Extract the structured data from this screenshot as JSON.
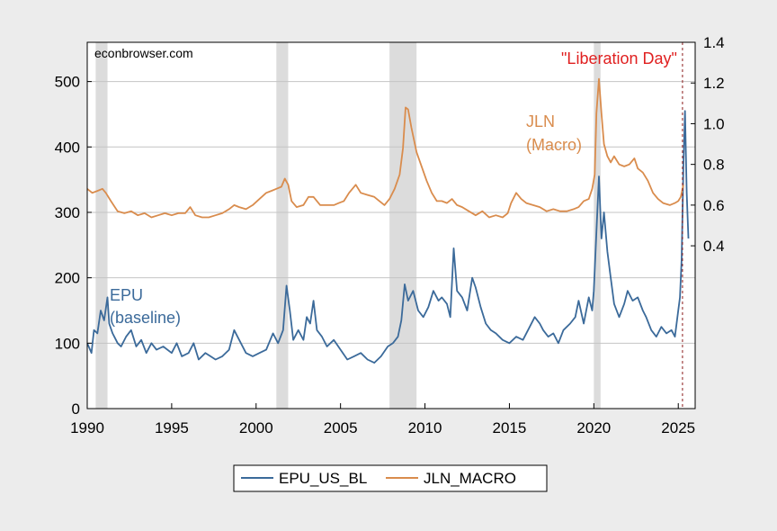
{
  "chart_data": {
    "type": "line",
    "source_label": "econbrowser.com",
    "x_ticks": [
      "1990",
      "1995",
      "2000",
      "2005",
      "2010",
      "2015",
      "2020",
      "2025"
    ],
    "y_left_ticks": [
      "0",
      "100",
      "200",
      "300",
      "400",
      "500"
    ],
    "y_right_ticks": [
      "0.4",
      "0.6",
      "0.8",
      "1.0",
      "1.2",
      "1.4"
    ],
    "xlim": [
      1990,
      2026.0
    ],
    "ylim_left": [
      0,
      560
    ],
    "ylim_right": [
      -0.4,
      1.4
    ],
    "grid": true,
    "recessions": [
      [
        1990.5,
        1991.2
      ],
      [
        2001.2,
        2001.9
      ],
      [
        2007.9,
        2009.5
      ],
      [
        2020.0,
        2020.4
      ]
    ],
    "event_line": {
      "x": 2025.25,
      "label": "\"Liberation Day\"",
      "color": "#e02020"
    },
    "series": [
      {
        "name": "EPU_US_BL",
        "axis": "left",
        "color": "#3b6a9a",
        "annotation": [
          "EPU",
          "(baseline)"
        ],
        "points": [
          [
            1990.0,
            100
          ],
          [
            1990.25,
            85
          ],
          [
            1990.4,
            120
          ],
          [
            1990.6,
            115
          ],
          [
            1990.8,
            150
          ],
          [
            1991.0,
            135
          ],
          [
            1991.2,
            170
          ],
          [
            1991.3,
            130
          ],
          [
            1991.5,
            115
          ],
          [
            1991.8,
            100
          ],
          [
            1992.0,
            95
          ],
          [
            1992.3,
            110
          ],
          [
            1992.6,
            120
          ],
          [
            1992.9,
            95
          ],
          [
            1993.2,
            105
          ],
          [
            1993.5,
            85
          ],
          [
            1993.8,
            100
          ],
          [
            1994.1,
            90
          ],
          [
            1994.5,
            95
          ],
          [
            1995.0,
            85
          ],
          [
            1995.3,
            100
          ],
          [
            1995.6,
            80
          ],
          [
            1996.0,
            85
          ],
          [
            1996.3,
            100
          ],
          [
            1996.6,
            75
          ],
          [
            1997.0,
            85
          ],
          [
            1997.3,
            80
          ],
          [
            1997.6,
            75
          ],
          [
            1998.0,
            80
          ],
          [
            1998.4,
            90
          ],
          [
            1998.7,
            120
          ],
          [
            1999.0,
            105
          ],
          [
            1999.4,
            85
          ],
          [
            1999.8,
            80
          ],
          [
            2000.2,
            85
          ],
          [
            2000.6,
            90
          ],
          [
            2001.0,
            115
          ],
          [
            2001.3,
            100
          ],
          [
            2001.6,
            120
          ],
          [
            2001.8,
            188
          ],
          [
            2002.0,
            150
          ],
          [
            2002.2,
            105
          ],
          [
            2002.5,
            120
          ],
          [
            2002.8,
            105
          ],
          [
            2003.0,
            140
          ],
          [
            2003.2,
            130
          ],
          [
            2003.4,
            165
          ],
          [
            2003.6,
            120
          ],
          [
            2003.9,
            110
          ],
          [
            2004.2,
            95
          ],
          [
            2004.6,
            105
          ],
          [
            2005.0,
            90
          ],
          [
            2005.4,
            75
          ],
          [
            2005.8,
            80
          ],
          [
            2006.2,
            85
          ],
          [
            2006.6,
            75
          ],
          [
            2007.0,
            70
          ],
          [
            2007.4,
            80
          ],
          [
            2007.8,
            95
          ],
          [
            2008.1,
            100
          ],
          [
            2008.4,
            110
          ],
          [
            2008.6,
            135
          ],
          [
            2008.8,
            190
          ],
          [
            2009.0,
            165
          ],
          [
            2009.3,
            180
          ],
          [
            2009.6,
            150
          ],
          [
            2009.9,
            140
          ],
          [
            2010.2,
            155
          ],
          [
            2010.5,
            180
          ],
          [
            2010.8,
            165
          ],
          [
            2011.0,
            170
          ],
          [
            2011.3,
            160
          ],
          [
            2011.5,
            140
          ],
          [
            2011.7,
            245
          ],
          [
            2011.9,
            180
          ],
          [
            2012.2,
            170
          ],
          [
            2012.5,
            150
          ],
          [
            2012.8,
            200
          ],
          [
            2013.0,
            185
          ],
          [
            2013.3,
            155
          ],
          [
            2013.6,
            130
          ],
          [
            2013.9,
            120
          ],
          [
            2014.2,
            115
          ],
          [
            2014.6,
            105
          ],
          [
            2015.0,
            100
          ],
          [
            2015.4,
            110
          ],
          [
            2015.8,
            105
          ],
          [
            2016.2,
            125
          ],
          [
            2016.5,
            140
          ],
          [
            2016.8,
            130
          ],
          [
            2017.0,
            120
          ],
          [
            2017.3,
            110
          ],
          [
            2017.6,
            115
          ],
          [
            2017.9,
            100
          ],
          [
            2018.2,
            120
          ],
          [
            2018.6,
            130
          ],
          [
            2018.9,
            140
          ],
          [
            2019.1,
            165
          ],
          [
            2019.4,
            130
          ],
          [
            2019.7,
            170
          ],
          [
            2019.9,
            150
          ],
          [
            2020.0,
            180
          ],
          [
            2020.15,
            270
          ],
          [
            2020.3,
            355
          ],
          [
            2020.45,
            260
          ],
          [
            2020.6,
            300
          ],
          [
            2020.8,
            240
          ],
          [
            2021.0,
            200
          ],
          [
            2021.2,
            160
          ],
          [
            2021.5,
            140
          ],
          [
            2021.8,
            160
          ],
          [
            2022.0,
            180
          ],
          [
            2022.3,
            165
          ],
          [
            2022.6,
            170
          ],
          [
            2022.9,
            150
          ],
          [
            2023.1,
            140
          ],
          [
            2023.4,
            120
          ],
          [
            2023.7,
            110
          ],
          [
            2024.0,
            125
          ],
          [
            2024.3,
            115
          ],
          [
            2024.6,
            120
          ],
          [
            2024.8,
            110
          ],
          [
            2025.0,
            150
          ],
          [
            2025.1,
            170
          ],
          [
            2025.2,
            230
          ],
          [
            2025.3,
            370
          ],
          [
            2025.4,
            455
          ],
          [
            2025.5,
            330
          ],
          [
            2025.6,
            260
          ]
        ]
      },
      {
        "name": "JLN_MACRO",
        "axis": "right",
        "color": "#d98c4d",
        "annotation": [
          "JLN",
          "(Macro)"
        ],
        "points": [
          [
            1990.0,
            0.68
          ],
          [
            1990.3,
            0.66
          ],
          [
            1990.6,
            0.67
          ],
          [
            1990.9,
            0.68
          ],
          [
            1991.1,
            0.66
          ],
          [
            1991.4,
            0.62
          ],
          [
            1991.8,
            0.57
          ],
          [
            1992.2,
            0.56
          ],
          [
            1992.6,
            0.57
          ],
          [
            1993.0,
            0.55
          ],
          [
            1993.4,
            0.56
          ],
          [
            1993.8,
            0.54
          ],
          [
            1994.2,
            0.55
          ],
          [
            1994.6,
            0.56
          ],
          [
            1995.0,
            0.55
          ],
          [
            1995.4,
            0.56
          ],
          [
            1995.8,
            0.56
          ],
          [
            1996.1,
            0.59
          ],
          [
            1996.4,
            0.55
          ],
          [
            1996.8,
            0.54
          ],
          [
            1997.2,
            0.54
          ],
          [
            1997.6,
            0.55
          ],
          [
            1998.0,
            0.56
          ],
          [
            1998.4,
            0.58
          ],
          [
            1998.7,
            0.6
          ],
          [
            1999.0,
            0.59
          ],
          [
            1999.4,
            0.58
          ],
          [
            1999.8,
            0.6
          ],
          [
            2000.2,
            0.63
          ],
          [
            2000.6,
            0.66
          ],
          [
            2000.9,
            0.67
          ],
          [
            2001.2,
            0.68
          ],
          [
            2001.5,
            0.69
          ],
          [
            2001.7,
            0.73
          ],
          [
            2001.9,
            0.7
          ],
          [
            2002.1,
            0.62
          ],
          [
            2002.4,
            0.59
          ],
          [
            2002.8,
            0.6
          ],
          [
            2003.1,
            0.64
          ],
          [
            2003.4,
            0.64
          ],
          [
            2003.8,
            0.6
          ],
          [
            2004.2,
            0.6
          ],
          [
            2004.6,
            0.6
          ],
          [
            2004.9,
            0.61
          ],
          [
            2005.2,
            0.62
          ],
          [
            2005.5,
            0.66
          ],
          [
            2005.9,
            0.7
          ],
          [
            2006.2,
            0.66
          ],
          [
            2006.6,
            0.65
          ],
          [
            2007.0,
            0.64
          ],
          [
            2007.3,
            0.62
          ],
          [
            2007.6,
            0.6
          ],
          [
            2007.9,
            0.63
          ],
          [
            2008.2,
            0.68
          ],
          [
            2008.5,
            0.75
          ],
          [
            2008.7,
            0.88
          ],
          [
            2008.85,
            1.08
          ],
          [
            2009.0,
            1.07
          ],
          [
            2009.2,
            0.98
          ],
          [
            2009.5,
            0.86
          ],
          [
            2009.8,
            0.79
          ],
          [
            2010.1,
            0.72
          ],
          [
            2010.4,
            0.66
          ],
          [
            2010.7,
            0.62
          ],
          [
            2011.0,
            0.62
          ],
          [
            2011.3,
            0.61
          ],
          [
            2011.6,
            0.63
          ],
          [
            2011.9,
            0.6
          ],
          [
            2012.2,
            0.59
          ],
          [
            2012.6,
            0.57
          ],
          [
            2013.0,
            0.55
          ],
          [
            2013.4,
            0.57
          ],
          [
            2013.8,
            0.54
          ],
          [
            2014.2,
            0.55
          ],
          [
            2014.6,
            0.54
          ],
          [
            2014.9,
            0.56
          ],
          [
            2015.1,
            0.61
          ],
          [
            2015.4,
            0.66
          ],
          [
            2015.7,
            0.63
          ],
          [
            2016.0,
            0.61
          ],
          [
            2016.4,
            0.6
          ],
          [
            2016.8,
            0.59
          ],
          [
            2017.2,
            0.57
          ],
          [
            2017.6,
            0.58
          ],
          [
            2018.0,
            0.57
          ],
          [
            2018.4,
            0.57
          ],
          [
            2018.8,
            0.58
          ],
          [
            2019.1,
            0.59
          ],
          [
            2019.4,
            0.62
          ],
          [
            2019.7,
            0.63
          ],
          [
            2019.9,
            0.68
          ],
          [
            2020.05,
            0.75
          ],
          [
            2020.15,
            1.05
          ],
          [
            2020.3,
            1.22
          ],
          [
            2020.45,
            1.05
          ],
          [
            2020.6,
            0.9
          ],
          [
            2020.8,
            0.84
          ],
          [
            2021.0,
            0.81
          ],
          [
            2021.2,
            0.84
          ],
          [
            2021.5,
            0.8
          ],
          [
            2021.8,
            0.79
          ],
          [
            2022.1,
            0.8
          ],
          [
            2022.4,
            0.83
          ],
          [
            2022.6,
            0.78
          ],
          [
            2022.9,
            0.76
          ],
          [
            2023.2,
            0.72
          ],
          [
            2023.5,
            0.66
          ],
          [
            2023.8,
            0.63
          ],
          [
            2024.1,
            0.61
          ],
          [
            2024.5,
            0.6
          ],
          [
            2024.8,
            0.61
          ],
          [
            2025.0,
            0.62
          ],
          [
            2025.15,
            0.64
          ],
          [
            2025.3,
            0.7
          ]
        ]
      }
    ]
  }
}
